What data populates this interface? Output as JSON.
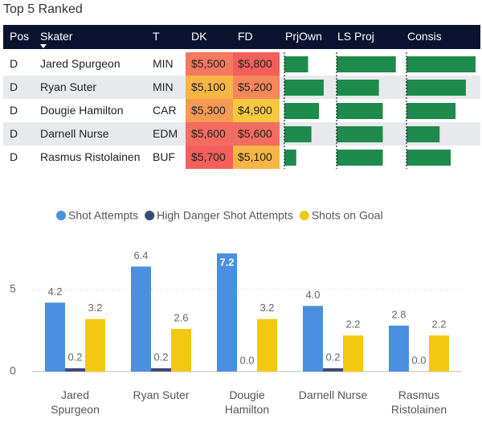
{
  "title": "Top 5 Ranked",
  "table": {
    "columns": [
      "Pos",
      "Skater",
      "T",
      "DK",
      "FD",
      "PrjOwn",
      "LS Proj",
      "Consis"
    ],
    "sort_column": 1,
    "rows": [
      [
        "D",
        "Jared Spurgeon",
        "MIN",
        "$5,500",
        "$5,800"
      ],
      [
        "D",
        "Ryan Suter",
        "MIN",
        "$5,100",
        "$5,200"
      ],
      [
        "D",
        "Dougie Hamilton",
        "CAR",
        "$5,300",
        "$4,900"
      ],
      [
        "D",
        "Darnell Nurse",
        "EDM",
        "$5,600",
        "$5,600"
      ],
      [
        "D",
        "Rasmus Ristolainen",
        "BUF",
        "$5,700",
        "$5,100"
      ]
    ],
    "heat_colors": [
      [
        "#f5795f",
        "#f6b545",
        "#f59a52",
        "#f46b5f",
        "#f3605c"
      ],
      [
        "#f3605c",
        "#f5875a",
        "#f6c840",
        "#f46b5f",
        "#f6b545"
      ]
    ],
    "bar_color": "#1e8a4c",
    "bar_values": [
      [
        50,
        83,
        73,
        57,
        25
      ],
      [
        91,
        65,
        71,
        71,
        71
      ],
      [
        100,
        86,
        71,
        48,
        64
      ]
    ]
  },
  "chart_data": {
    "type": "bar",
    "categories": [
      "Jared Spurgeon",
      "Ryan Suter",
      "Dougie Hamilton",
      "Darnell Nurse",
      "Rasmus Ristolainen"
    ],
    "series": [
      {
        "name": "Shot Attempts",
        "color": "#4a8fe0",
        "values": [
          4.2,
          6.4,
          7.2,
          4.0,
          2.8
        ],
        "value_labels": [
          "4.2",
          "6.4",
          "7.2",
          "4.0",
          "2.8"
        ]
      },
      {
        "name": "High Danger Shot Attempts",
        "color": "#3c4a78",
        "values": [
          0.2,
          0.2,
          0,
          0.2,
          0
        ],
        "value_labels": [
          "0.2",
          "0.2",
          "0.0",
          "0.2",
          "0.0"
        ]
      },
      {
        "name": "Shots on Goal",
        "color": "#f2c811",
        "values": [
          3.2,
          2.6,
          3.2,
          2.2,
          2.2
        ],
        "value_labels": [
          "3.2",
          "2.6",
          "3.2",
          "2.2",
          "2.2"
        ]
      }
    ],
    "ylim": [
      0,
      7.5
    ],
    "yticks": [
      0,
      5
    ],
    "grid": true
  }
}
